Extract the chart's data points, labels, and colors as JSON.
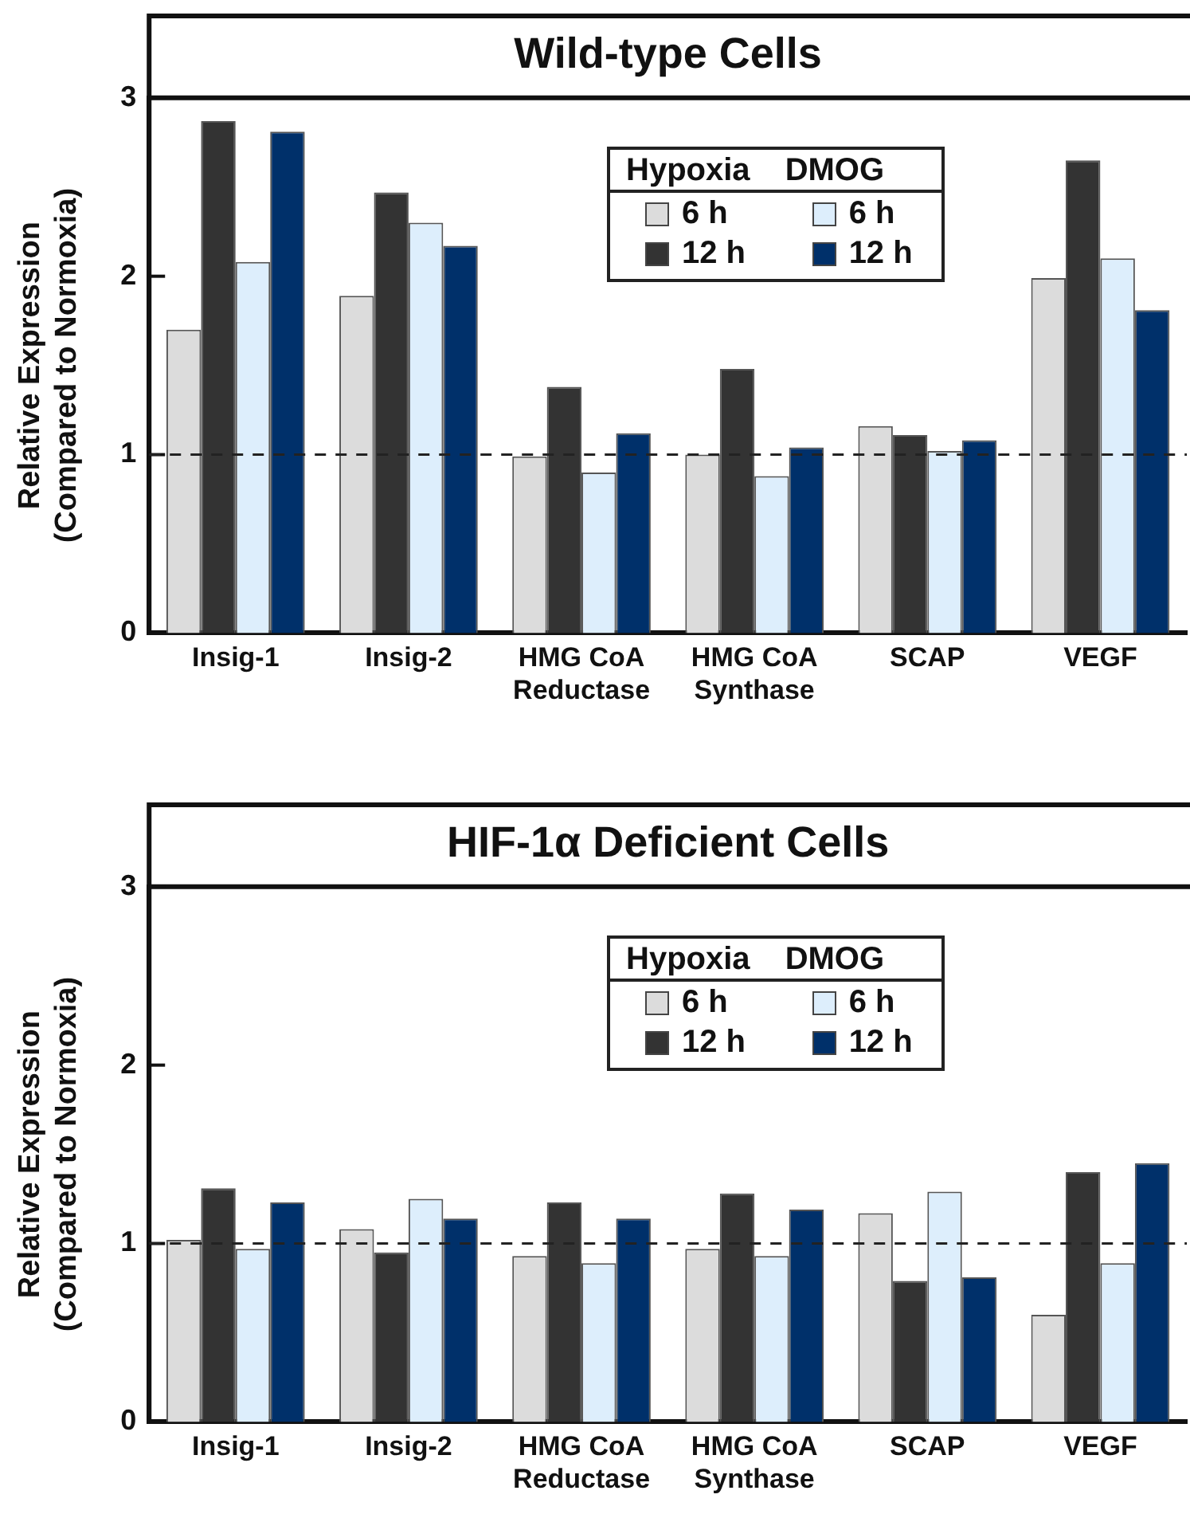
{
  "chart_data": [
    {
      "type": "bar",
      "title": "Wild-type Cells",
      "ylabel": "Relative Expression\n(Compared to Normoxia)",
      "categories": [
        "Insig-1",
        "Insig-2",
        "HMG CoA Reductase",
        "HMG CoA Synthase",
        "SCAP",
        "VEGF"
      ],
      "series": [
        {
          "name": "6 h",
          "color": "#dcdcdc",
          "values": [
            1.7,
            1.89,
            0.99,
            1.0,
            1.16,
            1.99
          ]
        },
        {
          "name": "12 h",
          "color": "#333333",
          "values": [
            2.87,
            2.47,
            1.38,
            1.48,
            1.11,
            2.65
          ]
        },
        {
          "name": "6 h",
          "color": "#ddeefc",
          "values": [
            2.08,
            2.3,
            0.9,
            0.88,
            1.02,
            2.1
          ]
        },
        {
          "name": "12 h",
          "color": "#00306a",
          "values": [
            2.81,
            2.17,
            1.12,
            1.04,
            1.08,
            1.81
          ]
        }
      ],
      "annotations": [
        "Hypoxia",
        "DMOG"
      ],
      "ylim": [
        0,
        3
      ],
      "yticks": [
        0,
        1,
        2,
        3
      ],
      "grid": false,
      "legend": "top right",
      "ref_lines": [
        {
          "axis": "y",
          "value": 1,
          "line_style": "dashed"
        }
      ]
    },
    {
      "type": "bar",
      "title": "HIF-1α Deficient Cells",
      "ylabel": "Relative Expression\n(Compared to Normoxia)",
      "categories": [
        "Insig-1",
        "Insig-2",
        "HMG CoA Reductase",
        "HMG CoA Synthase",
        "SCAP",
        "VEGF"
      ],
      "series": [
        {
          "name": "6 h",
          "color": "#dcdcdc",
          "values": [
            1.02,
            1.08,
            0.93,
            0.97,
            1.17,
            0.6
          ]
        },
        {
          "name": "12 h",
          "color": "#333333",
          "values": [
            1.31,
            0.95,
            1.23,
            1.28,
            0.79,
            1.4
          ]
        },
        {
          "name": "6 h",
          "color": "#ddeefc",
          "values": [
            0.97,
            1.25,
            0.89,
            0.93,
            1.29,
            0.89
          ]
        },
        {
          "name": "12 h",
          "color": "#00306a",
          "values": [
            1.23,
            1.14,
            1.14,
            1.19,
            0.81,
            1.45
          ]
        }
      ],
      "annotations": [
        "Hypoxia",
        "DMOG"
      ],
      "ylim": [
        0,
        3
      ],
      "yticks": [
        0,
        1,
        2,
        3
      ],
      "grid": false,
      "legend": "top right",
      "ref_lines": [
        {
          "axis": "y",
          "value": 1,
          "line_style": "dashed"
        }
      ]
    }
  ]
}
